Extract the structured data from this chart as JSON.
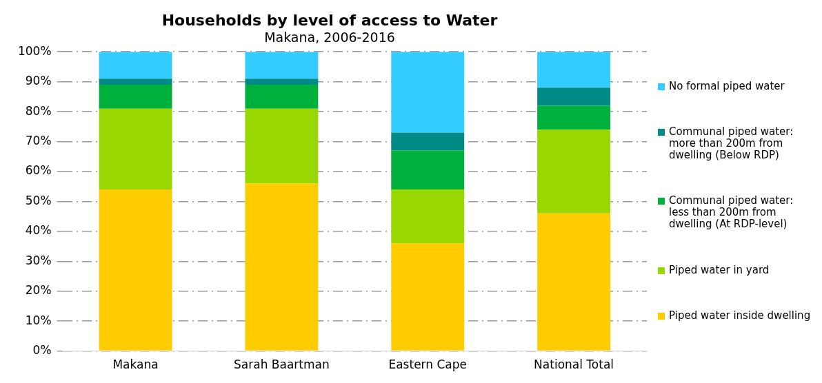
{
  "chart_data": {
    "type": "bar",
    "title": "Households by level of access to Water",
    "subtitle": "Makana, 2006-2016",
    "categories": [
      "Makana",
      "Sarah Baartman",
      "Eastern Cape",
      "National Total"
    ],
    "stacked": true,
    "series": [
      {
        "name": "Piped water inside dwelling",
        "color": "#ffcc00",
        "values": [
          54,
          56,
          36,
          46
        ]
      },
      {
        "name": "Piped water in yard",
        "color": "#99d700",
        "values": [
          27,
          25,
          18,
          28
        ]
      },
      {
        "name": "Communal piped water: less than 200m from dwelling (At RDP-level)",
        "color": "#00b03c",
        "values": [
          8,
          8,
          13,
          8
        ]
      },
      {
        "name": "Communal piped water: more than 200m from dwelling (Below RDP)",
        "color": "#008b86",
        "values": [
          2,
          2,
          6,
          6
        ]
      },
      {
        "name": "No formal piped water",
        "color": "#33ccff",
        "values": [
          9,
          9,
          27,
          12
        ]
      }
    ],
    "ylim": [
      0,
      100
    ],
    "yticks": [
      {
        "value": 0,
        "label": "0%"
      },
      {
        "value": 10,
        "label": "10%"
      },
      {
        "value": 20,
        "label": "20%"
      },
      {
        "value": 30,
        "label": "30%"
      },
      {
        "value": 40,
        "label": "40%"
      },
      {
        "value": 50,
        "label": "50%"
      },
      {
        "value": 60,
        "label": "60%"
      },
      {
        "value": 70,
        "label": "70%"
      },
      {
        "value": 80,
        "label": "80%"
      },
      {
        "value": 90,
        "label": "90%"
      },
      {
        "value": 100,
        "label": "100%"
      }
    ],
    "grid": "y",
    "legend": "right"
  }
}
